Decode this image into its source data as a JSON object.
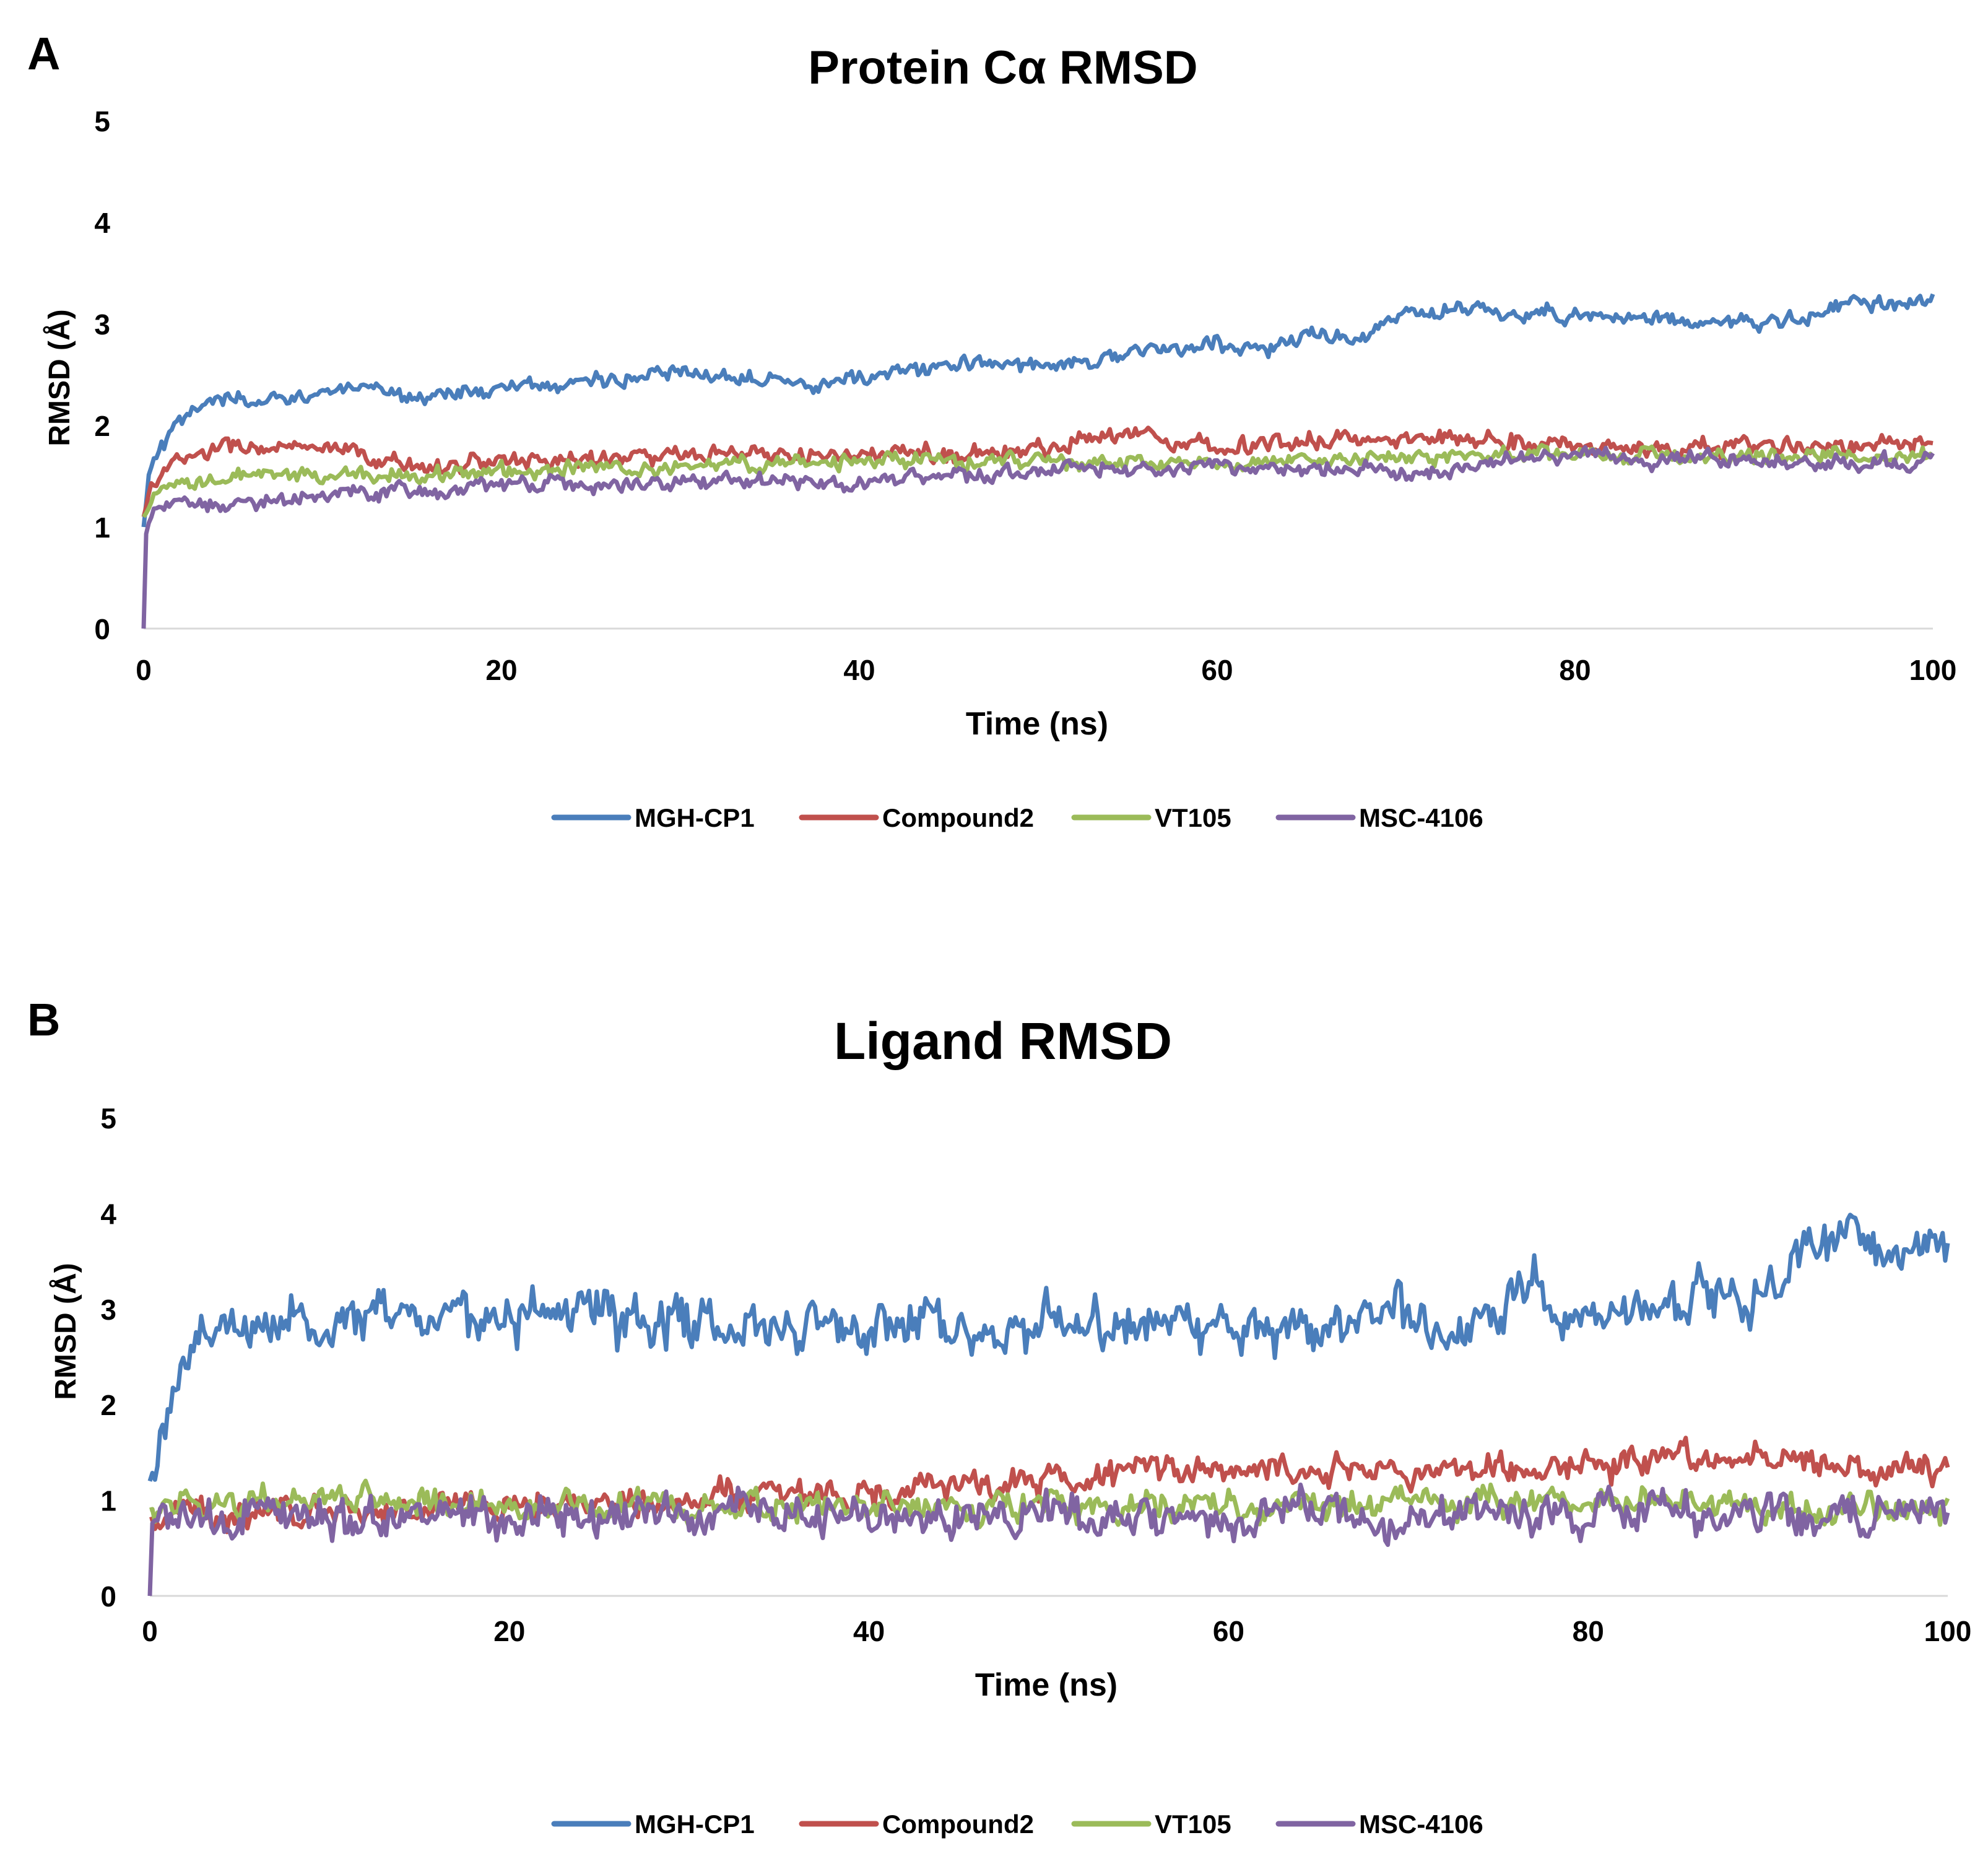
{
  "panels": [
    {
      "label": "A",
      "chart_data": {
        "type": "line",
        "title": "Protein Cα RMSD",
        "xlabel": "Time (ns)",
        "ylabel": "RMSD (Å)",
        "xlim": [
          0,
          100
        ],
        "ylim": [
          0,
          5
        ],
        "xticks": [
          0,
          20,
          40,
          60,
          80,
          100
        ],
        "yticks": [
          0,
          1,
          2,
          3,
          4,
          5
        ],
        "legend_position": "bottom-center",
        "grid": false,
        "noise_amplitude": [
          0.08,
          0.09,
          0.08,
          0.08
        ],
        "series": [
          {
            "name": "MGH-CP1",
            "color": "#4a7ebb",
            "x": [
              0,
              0.3,
              1,
              2,
              4,
              6,
              10,
              15,
              20,
              25,
              30,
              35,
              38,
              45,
              50,
              55,
              60,
              63,
              65,
              68,
              70,
              73,
              76,
              80,
              85,
              90,
              93,
              95,
              100
            ],
            "y": [
              1.0,
              1.5,
              1.8,
              2.0,
              2.3,
              2.2,
              2.35,
              2.3,
              2.35,
              2.45,
              2.5,
              2.5,
              2.4,
              2.6,
              2.6,
              2.7,
              2.8,
              2.75,
              2.9,
              2.85,
              3.05,
              3.15,
              3.1,
              3.1,
              3.05,
              3.0,
              3.05,
              3.2,
              3.2
            ]
          },
          {
            "name": "Compound2",
            "color": "#c0504d",
            "x": [
              0,
              0.5,
              2,
              5,
              10,
              15,
              20,
              30,
              40,
              50,
              54,
              60,
              66,
              70,
              73,
              80,
              85,
              90,
              100
            ],
            "y": [
              1.1,
              1.45,
              1.65,
              1.8,
              1.75,
              1.6,
              1.65,
              1.7,
              1.7,
              1.75,
              1.95,
              1.8,
              1.85,
              1.85,
              1.9,
              1.8,
              1.75,
              1.8,
              1.8
            ]
          },
          {
            "name": "VT105",
            "color": "#9bbb59",
            "x": [
              0,
              1,
              5,
              10,
              20,
              30,
              40,
              50,
              60,
              70,
              80,
              90,
              100
            ],
            "y": [
              1.1,
              1.35,
              1.5,
              1.5,
              1.55,
              1.6,
              1.65,
              1.65,
              1.6,
              1.7,
              1.7,
              1.7,
              1.7
            ]
          },
          {
            "name": "MSC-4106",
            "color": "#8064a2",
            "x": [
              0,
              0.1,
              0.5,
              2,
              5,
              10,
              20,
              30,
              40,
              50,
              60,
              70,
              80,
              90,
              100
            ],
            "y": [
              0,
              0.9,
              1.2,
              1.2,
              1.25,
              1.3,
              1.4,
              1.45,
              1.45,
              1.55,
              1.6,
              1.55,
              1.7,
              1.65,
              1.65
            ]
          }
        ]
      }
    },
    {
      "label": "B",
      "chart_data": {
        "type": "line",
        "title": "Ligand RMSD",
        "xlabel": "Time (ns)",
        "ylabel": "RMSD (Å)",
        "xlim": [
          0,
          100
        ],
        "ylim": [
          0,
          5
        ],
        "xticks": [
          0,
          20,
          40,
          60,
          80,
          100
        ],
        "yticks": [
          0,
          1,
          2,
          3,
          4,
          5
        ],
        "legend_position": "bottom-center",
        "grid": false,
        "noise_amplitude": [
          0.28,
          0.16,
          0.16,
          0.22
        ],
        "series": [
          {
            "name": "MGH-CP1",
            "color": "#4a7ebb",
            "x": [
              0,
              0.5,
              1,
              2,
              3,
              5,
              10,
              20,
              30,
              40,
              50,
              60,
              70,
              75,
              77,
              80,
              85,
              88,
              90,
              92,
              95,
              98,
              100
            ],
            "y": [
              1.2,
              1.5,
              2.0,
              2.3,
              2.8,
              2.85,
              2.9,
              2.95,
              2.9,
              2.85,
              2.85,
              2.8,
              2.95,
              2.9,
              3.3,
              2.9,
              3.0,
              3.25,
              3.15,
              3.65,
              3.75,
              3.6,
              3.6
            ]
          },
          {
            "name": "Compound2",
            "color": "#c0504d",
            "x": [
              0,
              1,
              10,
              20,
              30,
              40,
              47,
              50,
              58,
              60,
              70,
              80,
              85,
              89,
              92,
              95,
              100
            ],
            "y": [
              0.8,
              0.85,
              0.9,
              0.95,
              1.05,
              1.05,
              1.15,
              1.2,
              1.35,
              1.35,
              1.3,
              1.4,
              1.45,
              1.5,
              1.4,
              1.35,
              1.35
            ]
          },
          {
            "name": "VT105",
            "color": "#9bbb59",
            "x": [
              0,
              1,
              10,
              20,
              30,
              40,
              50,
              60,
              70,
              80,
              90,
              100
            ],
            "y": [
              0.9,
              0.95,
              1.0,
              0.95,
              0.95,
              0.95,
              0.95,
              0.95,
              1.0,
              0.95,
              0.95,
              0.9
            ]
          },
          {
            "name": "MSC-4106",
            "color": "#8064a2",
            "x": [
              0,
              0.1,
              0.5,
              10,
              20,
              30,
              40,
              50,
              60,
              70,
              80,
              90,
              100
            ],
            "y": [
              0,
              0.75,
              0.85,
              0.8,
              0.8,
              0.85,
              0.85,
              0.85,
              0.85,
              0.85,
              0.85,
              0.85,
              0.9
            ]
          }
        ]
      }
    }
  ]
}
